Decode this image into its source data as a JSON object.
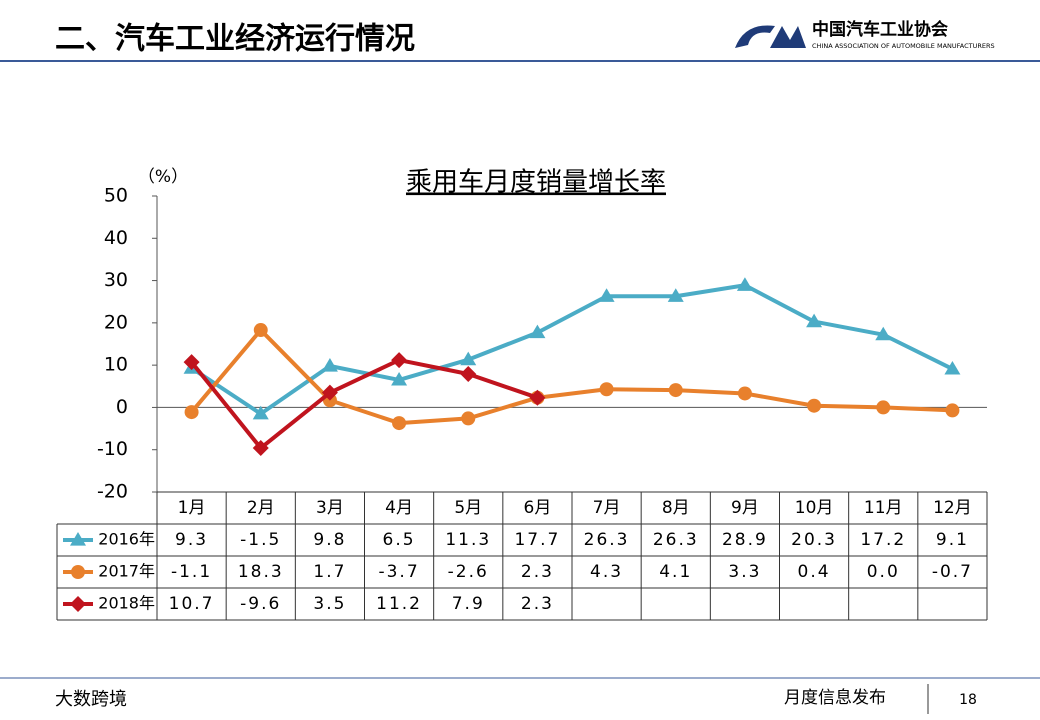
{
  "header": {
    "title": "二、汽车工业经济运行情况",
    "logo_name": "中国汽车工业协会",
    "logo_english": "CHINA ASSOCIATION OF AUTOMOBILE MANUFACTURERS"
  },
  "footer": {
    "text": "月度信息发布",
    "page": "18",
    "watermark": "大数跨境"
  },
  "chart_data": {
    "type": "line",
    "title": "乘用车月度销量增长率",
    "y_label": "（%）",
    "categories": [
      "1月",
      "2月",
      "3月",
      "4月",
      "5月",
      "6月",
      "7月",
      "8月",
      "9月",
      "10月",
      "11月",
      "12月"
    ],
    "ylim": [
      -20,
      50
    ],
    "yticks": [
      -20,
      -10,
      0,
      10,
      20,
      30,
      40,
      50
    ],
    "grid": false,
    "series": [
      {
        "name": "2016年",
        "color": "#4bacc6",
        "marker": "triangle",
        "values": [
          9.3,
          -1.5,
          9.8,
          6.5,
          11.3,
          17.7,
          26.3,
          26.3,
          28.9,
          20.3,
          17.2,
          9.1
        ],
        "value_labels": [
          "9.3",
          "-1.5",
          "9.8",
          "6.5",
          "11.3",
          "17.7",
          "26.3",
          "26.3",
          "28.9",
          "20.3",
          "17.2",
          "9.1"
        ]
      },
      {
        "name": "2017年",
        "color": "#e8802c",
        "marker": "circle",
        "values": [
          -1.1,
          18.3,
          1.7,
          -3.7,
          -2.6,
          2.3,
          4.3,
          4.1,
          3.3,
          0.4,
          0.0,
          -0.7
        ],
        "value_labels": [
          "-1.1",
          "18.3",
          "1.7",
          "-3.7",
          "-2.6",
          "2.3",
          "4.3",
          "4.1",
          "3.3",
          "0.4",
          "0.0",
          "-0.7"
        ]
      },
      {
        "name": "2018年",
        "color": "#c0141e",
        "marker": "diamond",
        "values": [
          10.7,
          -9.6,
          3.5,
          11.2,
          7.9,
          2.3,
          null,
          null,
          null,
          null,
          null,
          null
        ],
        "value_labels": [
          "10.7",
          "-9.6",
          "3.5",
          "11.2",
          "7.9",
          "2.3",
          null,
          null,
          null,
          null,
          null,
          null
        ]
      }
    ]
  }
}
